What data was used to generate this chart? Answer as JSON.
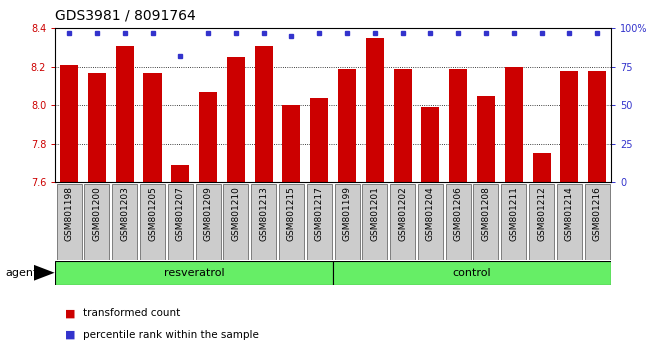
{
  "title": "GDS3981 / 8091764",
  "samples": [
    "GSM801198",
    "GSM801200",
    "GSM801203",
    "GSM801205",
    "GSM801207",
    "GSM801209",
    "GSM801210",
    "GSM801213",
    "GSM801215",
    "GSM801217",
    "GSM801199",
    "GSM801201",
    "GSM801202",
    "GSM801204",
    "GSM801206",
    "GSM801208",
    "GSM801211",
    "GSM801212",
    "GSM801214",
    "GSM801216"
  ],
  "transformed_counts": [
    8.21,
    8.17,
    8.31,
    8.17,
    7.69,
    8.07,
    8.25,
    8.31,
    8.0,
    8.04,
    8.19,
    8.35,
    8.19,
    7.99,
    8.19,
    8.05,
    8.2,
    7.75,
    8.18,
    8.18
  ],
  "percentile_ranks": [
    97,
    97,
    97,
    97,
    82,
    97,
    97,
    97,
    95,
    97,
    97,
    97,
    97,
    97,
    97,
    97,
    97,
    97,
    97,
    97
  ],
  "resveratrol_count": 10,
  "control_count": 10,
  "ylim_left": [
    7.6,
    8.4
  ],
  "ylim_right": [
    0,
    100
  ],
  "yticks_left": [
    7.6,
    7.8,
    8.0,
    8.2,
    8.4
  ],
  "yticks_right": [
    0,
    25,
    50,
    75,
    100
  ],
  "bar_color": "#cc0000",
  "dot_color": "#3333cc",
  "resveratrol_color": "#66ee66",
  "control_color": "#44dd44",
  "agent_label": "agent",
  "resveratrol_label": "resveratrol",
  "control_label": "control",
  "legend_bar_label": "transformed count",
  "legend_dot_label": "percentile rank within the sample",
  "tick_label_bg": "#cccccc",
  "base_value": 7.6,
  "title_fontsize": 10,
  "label_fontsize": 7,
  "tick_fontsize": 6.5,
  "agent_fontsize": 8,
  "legend_fontsize": 7.5,
  "group_fontsize": 8
}
